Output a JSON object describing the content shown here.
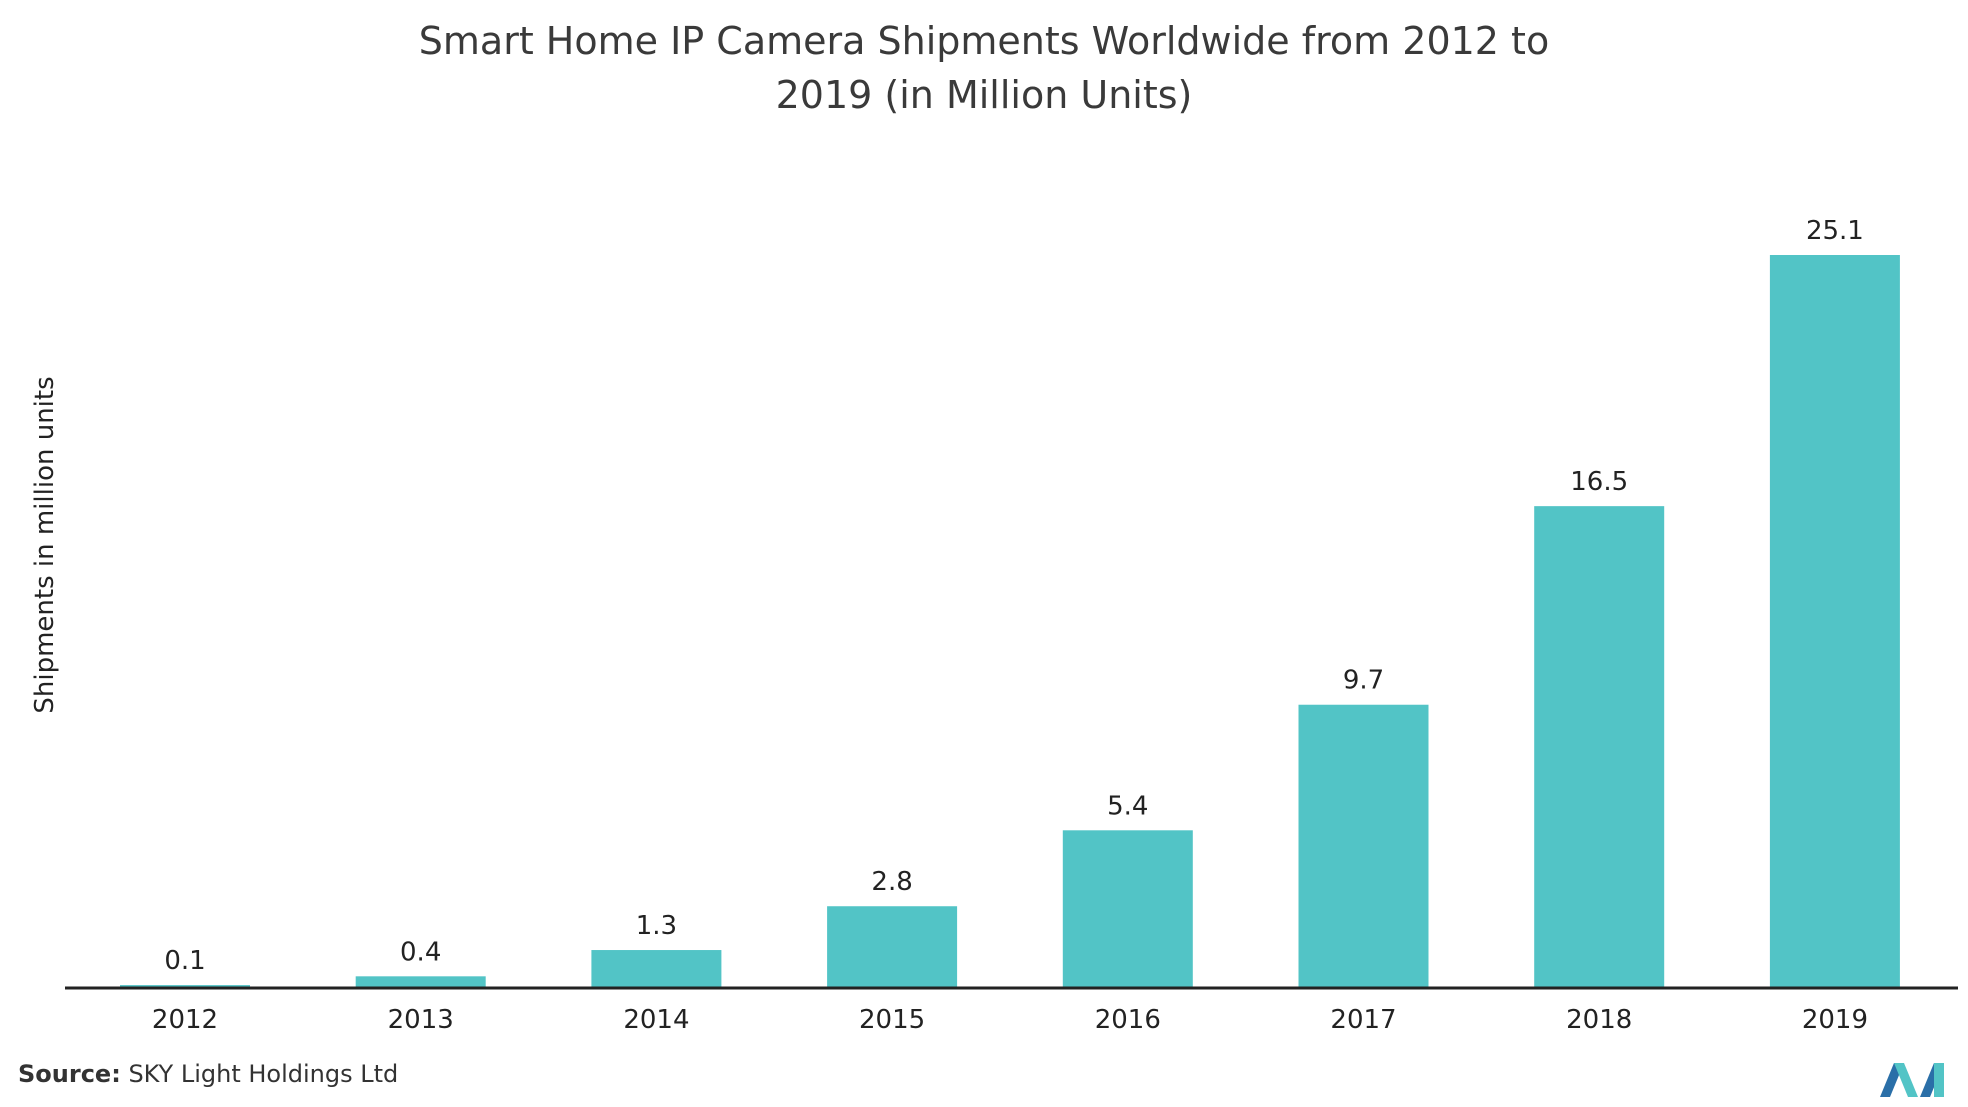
{
  "chart_data": {
    "type": "bar",
    "title_lines": [
      "Smart Home IP Camera Shipments Worldwide from 2012 to",
      "2019 (in Million Units)"
    ],
    "ylabel": "Shipments in million units",
    "xlabel": "",
    "categories": [
      "2012",
      "2013",
      "2014",
      "2015",
      "2016",
      "2017",
      "2018",
      "2019"
    ],
    "values": [
      0.1,
      0.4,
      1.3,
      2.8,
      5.4,
      9.7,
      16.5,
      25.1
    ],
    "value_labels": [
      "0.1",
      "0.4",
      "1.3",
      "2.8",
      "5.4",
      "9.7",
      "16.5",
      "25.1"
    ],
    "ylim": [
      0,
      25.1
    ],
    "grid": false,
    "legend": "none",
    "bar_color": "#52c4c6"
  },
  "source": {
    "label": "Source:",
    "text": "SKY Light Holdings Ltd"
  },
  "logo": {
    "icon": "mordor-intelligence-logo",
    "colors": [
      "#2a6fa8",
      "#52c4c6"
    ]
  }
}
